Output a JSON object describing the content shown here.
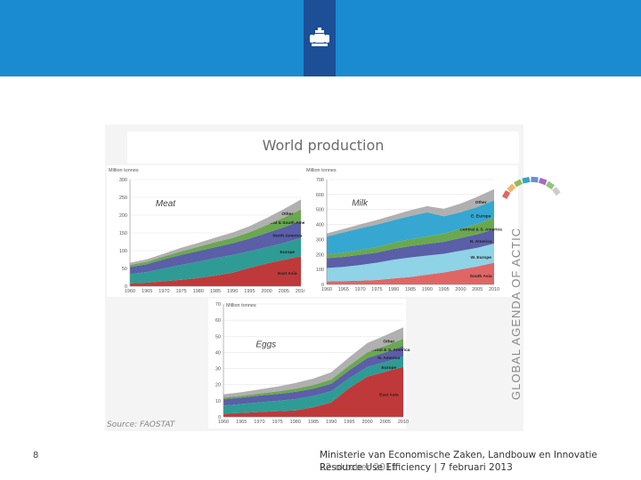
{
  "slide": {
    "page_number": "8",
    "footer_line1": "Ministerie van Economische Zaken, Landbouw en Innovatie",
    "footer_line2a": "22 oktober 2011",
    "footer_line2b": "Resource Use Efficiency | 7 februari 2013",
    "source": "Source: FAOSTAT",
    "side_text": "GLOBAL AGENDA OF ACTION"
  },
  "chart_title": "World production",
  "colors": {
    "topbar": "#1a8bd0",
    "logo_bg": "#1c4f96",
    "east_asia": "#c0393a",
    "europe": "#2e9c94",
    "north_america": "#5a5fa8",
    "central_south_america": "#6aa84f",
    "other": "#b0b0b0",
    "milk_c_europe": "#35a7d1",
    "milk_w_europe": "#8ed3e6",
    "milk_south_asia": "#e06666"
  },
  "chart_data": [
    {
      "type": "area",
      "name": "Meat",
      "ylabel": "Million tonnes",
      "ylim": [
        0,
        300
      ],
      "yticks": [
        "0",
        "50",
        "100",
        "150",
        "200",
        "250",
        "300"
      ],
      "x": [
        "1960",
        "1965",
        "1970",
        "1975",
        "1980",
        "1985",
        "1990",
        "1995",
        "2000",
        "2005",
        "2010"
      ],
      "series": [
        {
          "name": "East Asia",
          "values": [
            8,
            10,
            14,
            18,
            23,
            30,
            38,
            52,
            64,
            74,
            84
          ]
        },
        {
          "name": "Europe",
          "values": [
            26,
            30,
            36,
            42,
            46,
            49,
            50,
            46,
            46,
            48,
            52
          ]
        },
        {
          "name": "North America",
          "values": [
            20,
            22,
            26,
            28,
            30,
            31,
            33,
            36,
            40,
            44,
            48
          ]
        },
        {
          "name": "Central & South America",
          "values": [
            6,
            7,
            8,
            10,
            12,
            14,
            15,
            18,
            22,
            27,
            32
          ]
        },
        {
          "name": "Other",
          "values": [
            6,
            7,
            8,
            10,
            11,
            13,
            15,
            17,
            20,
            24,
            28
          ]
        }
      ],
      "labels": [
        "East Asia",
        "Europe",
        "North America",
        "Central & South America",
        "Other"
      ]
    },
    {
      "type": "area",
      "name": "Milk",
      "ylabel": "Million tonnes",
      "ylim": [
        0,
        700
      ],
      "yticks": [
        "0",
        "100",
        "200",
        "300",
        "400",
        "500",
        "600",
        "700"
      ],
      "x": [
        "1960",
        "1965",
        "1970",
        "1975",
        "1980",
        "1985",
        "1990",
        "1995",
        "2000",
        "2005",
        "2010"
      ],
      "series": [
        {
          "name": "South Asia",
          "values": [
            20,
            22,
            25,
            30,
            40,
            50,
            65,
            80,
            100,
            120,
            145
          ]
        },
        {
          "name": "W. Europe",
          "values": [
            90,
            95,
            105,
            115,
            125,
            130,
            128,
            125,
            125,
            125,
            128
          ]
        },
        {
          "name": "N. America",
          "values": [
            65,
            67,
            68,
            68,
            72,
            76,
            78,
            80,
            85,
            90,
            95
          ]
        },
        {
          "name": "Central & S. America",
          "values": [
            25,
            28,
            32,
            37,
            42,
            46,
            50,
            55,
            62,
            70,
            78
          ]
        },
        {
          "name": "E. Europe",
          "values": [
            120,
            135,
            145,
            150,
            150,
            155,
            160,
            115,
            110,
            112,
            115
          ]
        },
        {
          "name": "Other",
          "values": [
            20,
            23,
            26,
            30,
            34,
            38,
            42,
            50,
            58,
            68,
            75
          ]
        }
      ],
      "labels": [
        "South Asia",
        "W. Europe",
        "N. America",
        "Central & S. America",
        "E. Europe",
        "Other"
      ]
    },
    {
      "type": "area",
      "name": "Eggs",
      "ylabel": "Million tonnes",
      "ylim": [
        0,
        70
      ],
      "yticks": [
        "0",
        "10",
        "20",
        "30",
        "40",
        "50",
        "60",
        "70"
      ],
      "x": [
        "1960",
        "1965",
        "1970",
        "1975",
        "1980",
        "1985",
        "1990",
        "1995",
        "2000",
        "2005",
        "2010"
      ],
      "series": [
        {
          "name": "East Asia",
          "values": [
            2,
            2.5,
            3,
            3.5,
            4,
            6,
            9,
            18,
            25,
            28,
            31
          ]
        },
        {
          "name": "Europe",
          "values": [
            5,
            5.5,
            6,
            6.5,
            7,
            7,
            7,
            6,
            6,
            6,
            6.5
          ]
        },
        {
          "name": "N. America",
          "values": [
            4,
            4,
            4.2,
            4.2,
            4.5,
            4.5,
            4.6,
            5,
            5.5,
            6,
            6.5
          ]
        },
        {
          "name": "Central & S. America",
          "values": [
            1,
            1.1,
            1.3,
            1.6,
            2,
            2.3,
            2.6,
            3,
            3.5,
            4,
            4.5
          ]
        },
        {
          "name": "Other",
          "values": [
            2,
            2.2,
            2.5,
            3,
            3.5,
            4,
            4.5,
            5,
            5.8,
            6.5,
            7
          ]
        }
      ],
      "labels": [
        "East Asia",
        "Europe",
        "N. America",
        "Central & S. America",
        "Other"
      ]
    }
  ]
}
